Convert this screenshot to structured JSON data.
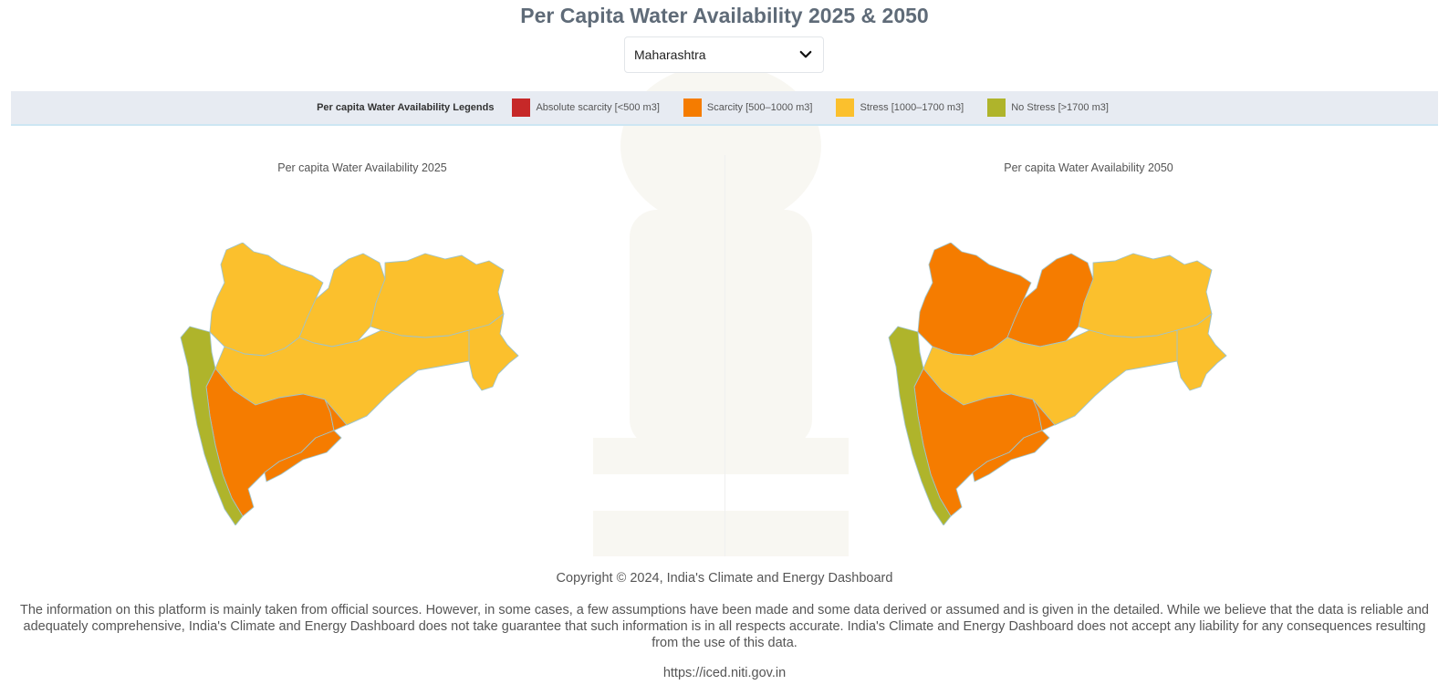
{
  "page": {
    "title": "Per Capita Water Availability 2025 & 2050"
  },
  "state_selector": {
    "selected": "Maharashtra",
    "icon": "chevron-down-icon"
  },
  "legend": {
    "title": "Per capita Water Availability Legends",
    "items": [
      {
        "label": "Absolute scarcity [<500 m3]",
        "color": "#c62828"
      },
      {
        "label": "Scarcity [500–1000 m3]",
        "color": "#f57c00"
      },
      {
        "label": "Stress [1000–1700 m3]",
        "color": "#fbc02d"
      },
      {
        "label": "No Stress [>1700 m3]",
        "color": "#afb42b"
      }
    ]
  },
  "maps": [
    {
      "title": "Per capita Water Availability 2025",
      "regions": {
        "north_west": "Stress",
        "north_mid": "Stress",
        "north_east": "Stress",
        "east": "Stress",
        "center": "Stress",
        "south_west_inland": "Scarcity",
        "south_center": "Scarcity",
        "coast": "No Stress"
      }
    },
    {
      "title": "Per capita Water Availability 2050",
      "regions": {
        "north_west": "Scarcity",
        "north_mid": "Scarcity",
        "north_east": "Stress",
        "east": "Stress",
        "center": "Stress",
        "south_west_inland": "Scarcity",
        "south_center": "Scarcity",
        "coast": "No Stress"
      }
    }
  ],
  "category_colors": {
    "Absolute scarcity": "#c62828",
    "Scarcity": "#f57c00",
    "Stress": "#fbc02d",
    "No Stress": "#afb42b"
  },
  "footer": {
    "copyright": "Copyright © 2024, India's Climate and Energy Dashboard",
    "disclaimer": "The information on this platform is mainly taken from official sources. However, in some cases, a few assumptions have been made and some data derived or assumed and is given in the detailed. While we believe that the data is reliable and adequately comprehensive, India's Climate and Energy Dashboard does not take guarantee that such information is in all respects accurate. India's Climate and Energy Dashboard does not accept any liability for any consequences resulting from the use of this data.",
    "url": "https://iced.niti.gov.in"
  }
}
